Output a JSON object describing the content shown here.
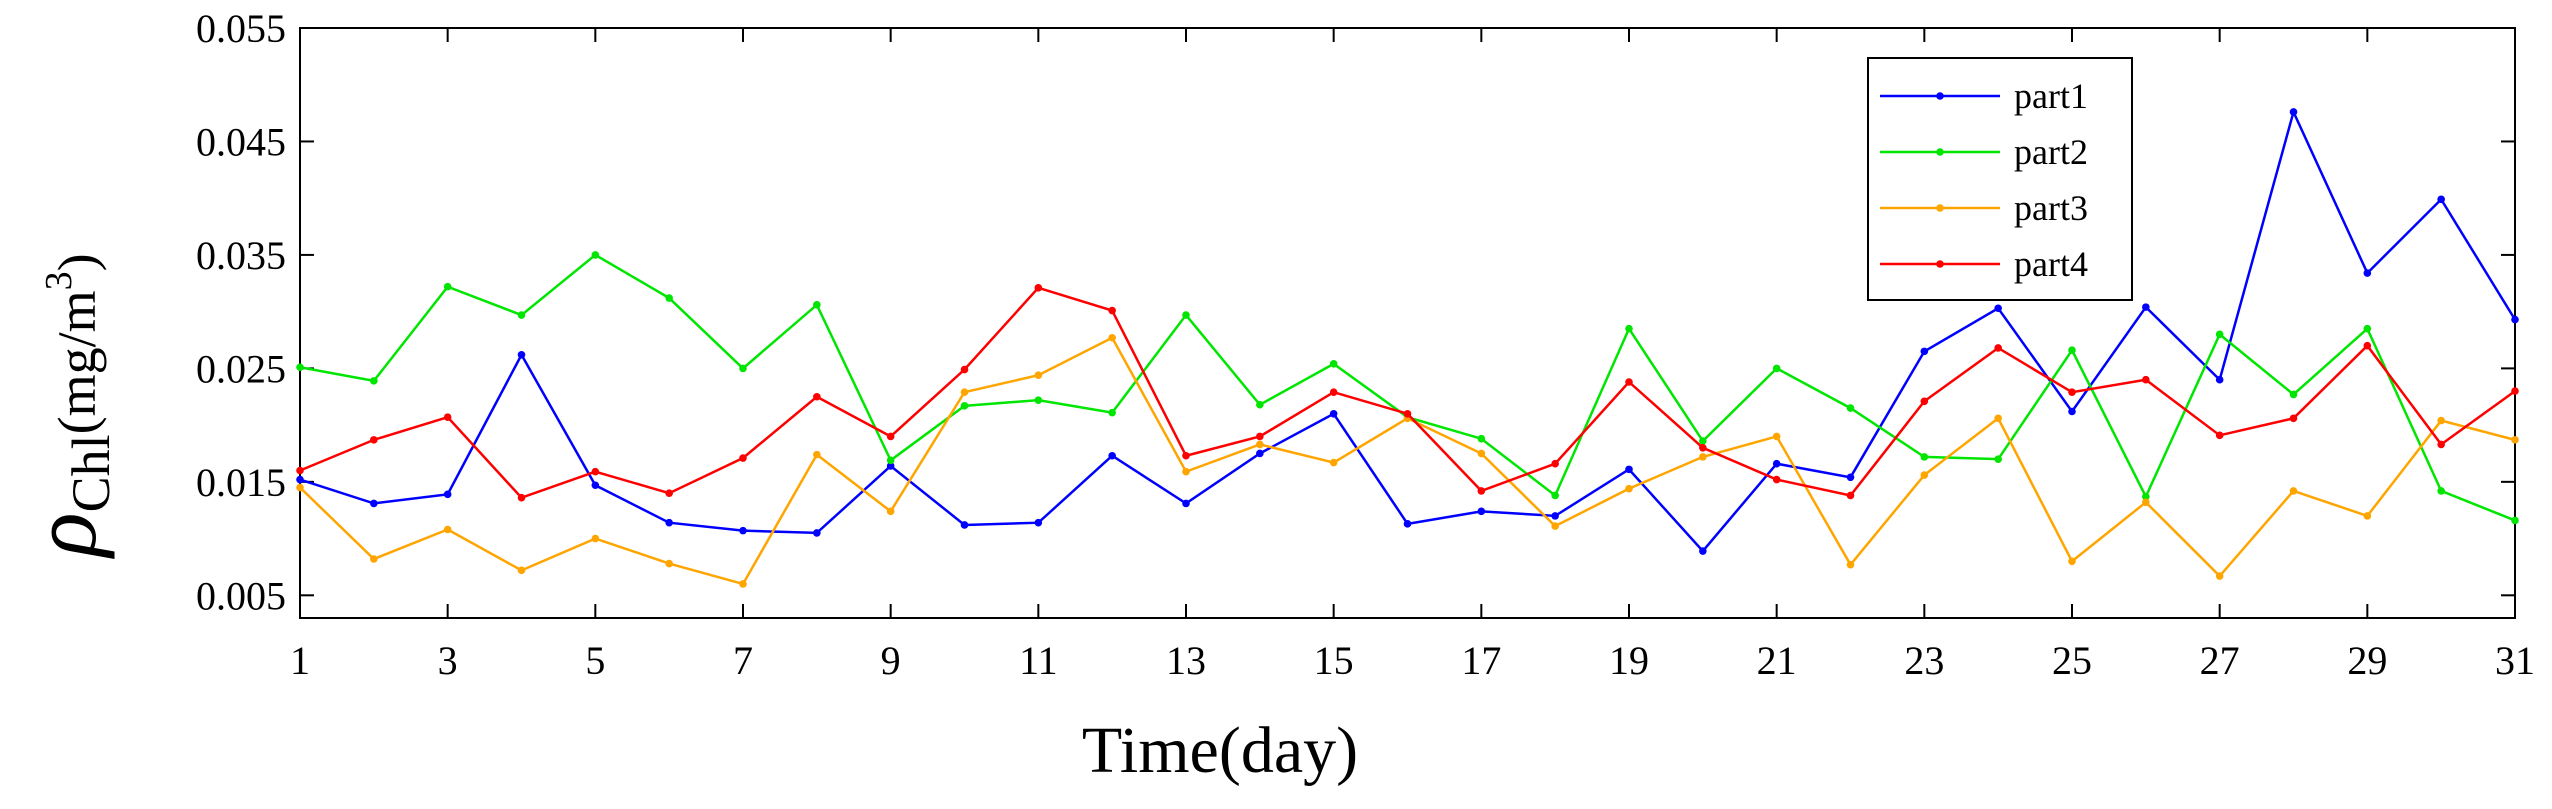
{
  "chart_data": {
    "type": "line",
    "xlabel": "Time(day)",
    "ylabel": {
      "symbol": "ρ",
      "subscript": "Chl",
      "unit_prefix": "(mg/m",
      "unit_exp": "3",
      "unit_suffix": ")"
    },
    "xlim": [
      1,
      31
    ],
    "ylim": [
      0.003,
      0.055
    ],
    "xticks": [
      "1",
      "3",
      "5",
      "7",
      "9",
      "11",
      "13",
      "15",
      "17",
      "19",
      "21",
      "23",
      "25",
      "27",
      "29",
      "31"
    ],
    "yticks": [
      "0.005",
      "0.015",
      "0.025",
      "0.035",
      "0.045",
      "0.055"
    ],
    "legend_position": "top-right",
    "grid": false,
    "x": [
      1,
      2,
      3,
      4,
      5,
      6,
      7,
      8,
      9,
      10,
      11,
      12,
      13,
      14,
      15,
      16,
      17,
      18,
      19,
      20,
      21,
      22,
      23,
      24,
      25,
      26,
      27,
      28,
      29,
      30,
      31
    ],
    "series": [
      {
        "name": "part1",
        "color": "#0000ff",
        "values": [
          0.0152,
          0.0131,
          0.0139,
          0.0262,
          0.0147,
          0.0114,
          0.0107,
          0.0105,
          0.0164,
          0.0112,
          0.0114,
          0.0173,
          0.0131,
          0.0175,
          0.021,
          0.0113,
          0.0124,
          0.012,
          0.0161,
          0.0089,
          0.0166,
          0.0154,
          0.0265,
          0.0303,
          0.0212,
          0.0304,
          0.024,
          0.0476,
          0.0334,
          0.0399,
          0.0293
        ]
      },
      {
        "name": "part2",
        "color": "#00e600",
        "values": [
          0.0251,
          0.0239,
          0.0322,
          0.0297,
          0.035,
          0.0312,
          0.025,
          0.0306,
          0.0169,
          0.0217,
          0.0222,
          0.0211,
          0.0297,
          0.0218,
          0.0254,
          0.0207,
          0.0188,
          0.0138,
          0.0285,
          0.0186,
          0.025,
          0.0215,
          0.0172,
          0.017,
          0.0266,
          0.0137,
          0.028,
          0.0227,
          0.0285,
          0.0142,
          0.0116
        ]
      },
      {
        "name": "part3",
        "color": "#ffa500",
        "values": [
          0.0145,
          0.0082,
          0.0108,
          0.0072,
          0.01,
          0.0078,
          0.006,
          0.0174,
          0.0124,
          0.0229,
          0.0244,
          0.0277,
          0.0159,
          0.0183,
          0.0167,
          0.0206,
          0.0175,
          0.0111,
          0.0144,
          0.0172,
          0.019,
          0.0077,
          0.0156,
          0.0206,
          0.008,
          0.0132,
          0.0067,
          0.0142,
          0.012,
          0.0204,
          0.0187
        ]
      },
      {
        "name": "part4",
        "color": "#ff0000",
        "values": [
          0.016,
          0.0187,
          0.0207,
          0.0136,
          0.0159,
          0.014,
          0.0171,
          0.0225,
          0.019,
          0.0249,
          0.0321,
          0.0301,
          0.0173,
          0.019,
          0.0229,
          0.021,
          0.0142,
          0.0166,
          0.0238,
          0.018,
          0.0152,
          0.0138,
          0.0221,
          0.0268,
          0.0229,
          0.024,
          0.0191,
          0.0206,
          0.027,
          0.0183,
          0.023
        ]
      }
    ]
  }
}
